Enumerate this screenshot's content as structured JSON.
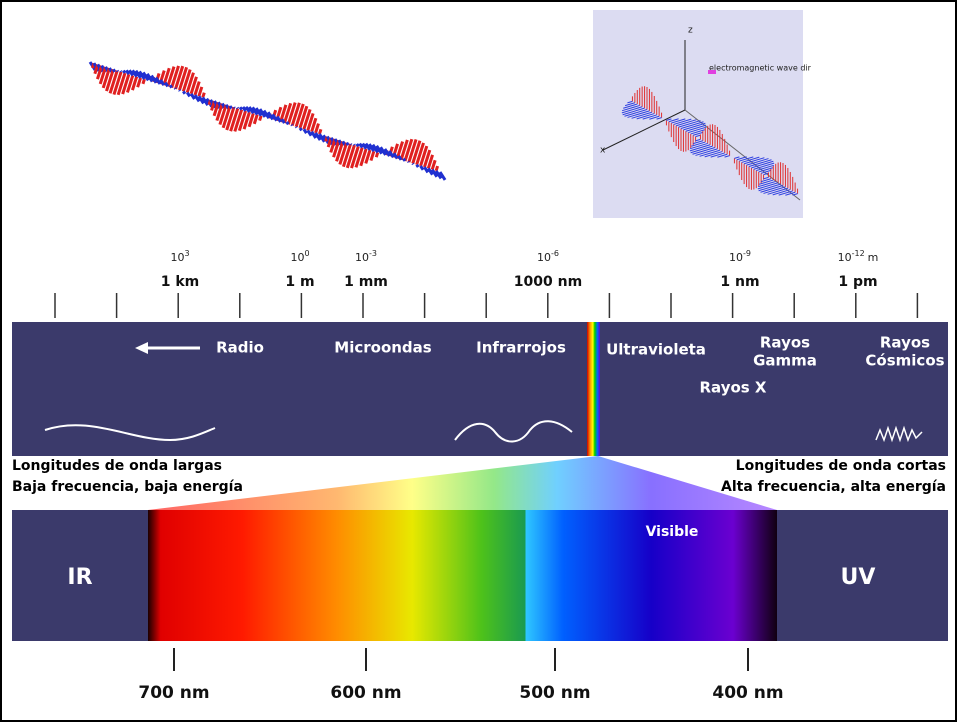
{
  "inset": {
    "axis_z": "z",
    "axis_x": "x",
    "caption": "electromagnetic wave dir"
  },
  "scale": [
    {
      "base": "10",
      "exponent": "3",
      "label": "1 km"
    },
    {
      "base": "10",
      "exponent": "0",
      "label": "1 m"
    },
    {
      "base": "10",
      "exponent": "-3",
      "label": "1 mm"
    },
    {
      "base": "10",
      "exponent": "-6",
      "label": "1000 nm"
    },
    {
      "base": "10",
      "exponent": "-9",
      "label": "1 nm"
    },
    {
      "base": "10",
      "exponent": "-12",
      "unit": "m",
      "label": "1 pm"
    }
  ],
  "bands": [
    {
      "lines": [
        "Radio"
      ]
    },
    {
      "lines": [
        "Microondas"
      ]
    },
    {
      "lines": [
        "Infrarrojos"
      ]
    },
    {
      "lines": [
        "Ultravioleta"
      ]
    },
    {
      "lines": [
        "Rayos",
        "Gamma"
      ]
    },
    {
      "lines": [
        "Rayos",
        "Cósmicos"
      ]
    },
    {
      "lines": [
        "Rayos X"
      ]
    }
  ],
  "left_note": [
    "Longitudes de onda largas",
    "Baja frecuencia, baja energía"
  ],
  "right_note": [
    "Longitudes de onda cortas",
    "Alta frecuencia, alta energía"
  ],
  "visible": {
    "title": "Visible",
    "ir": "IR",
    "uv": "UV",
    "wavelengths": [
      "700 nm",
      "600 nm",
      "500 nm",
      "400 nm"
    ]
  }
}
